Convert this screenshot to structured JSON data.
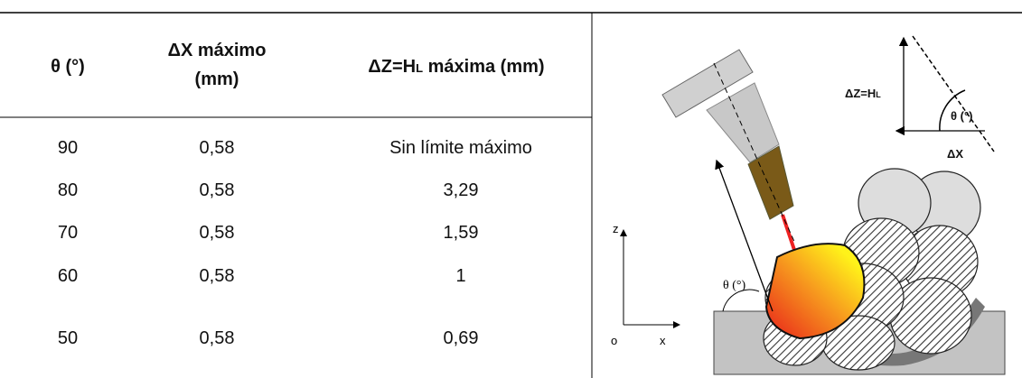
{
  "table": {
    "header": [
      "θ (°)",
      [
        "ΔX máximo",
        "(mm)"
      ],
      {
        "main": "ΔZ=H",
        "sub": "L",
        "tail": " máxima (mm)"
      }
    ],
    "rows": [
      [
        "90",
        "0,58",
        "Sin límite máximo"
      ],
      [
        "80",
        "0,58",
        "3,29"
      ],
      [
        "70",
        "0,58",
        "1,59"
      ],
      [
        "60",
        "0,58",
        "1"
      ],
      [
        "50",
        "0,58",
        "0,69"
      ]
    ]
  },
  "diagram": {
    "dz": "ΔZ=H",
    "dz_sub": "L",
    "theta_top": "θ (°)",
    "dx": "ΔX",
    "z": "z",
    "o": "o",
    "x": "x",
    "theta": "θ (°)"
  }
}
